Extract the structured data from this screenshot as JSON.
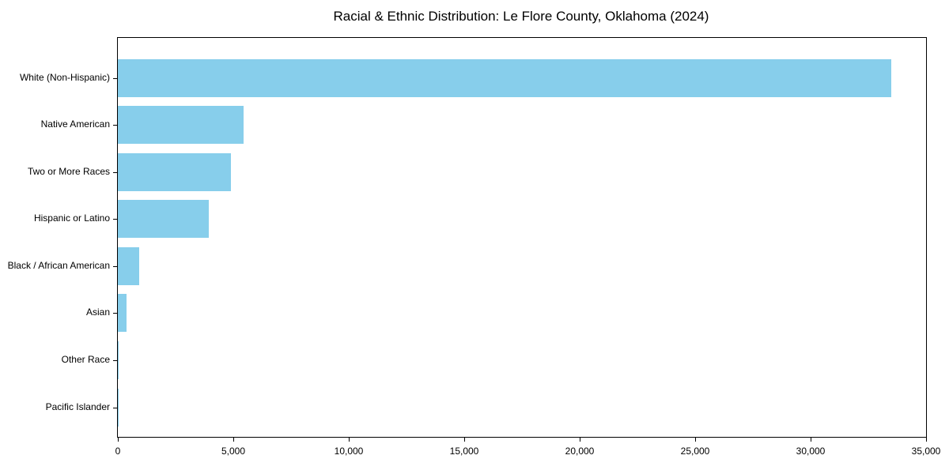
{
  "chart_data": {
    "type": "bar",
    "orientation": "horizontal",
    "title": "Racial & Ethnic Distribution: Le Flore County, Oklahoma (2024)",
    "xlabel": "",
    "ylabel": "",
    "categories": [
      "White (Non-Hispanic)",
      "Native American",
      "Two or More Races",
      "Hispanic or Latino",
      "Black / African American",
      "Asian",
      "Other Race",
      "Pacific Islander"
    ],
    "values": [
      33500,
      5450,
      4900,
      3930,
      920,
      390,
      50,
      20
    ],
    "xlim": [
      0,
      35000
    ],
    "xticks": [
      0,
      5000,
      10000,
      15000,
      20000,
      25000,
      30000,
      35000
    ],
    "xtick_labels": [
      "0",
      "5,000",
      "10,000",
      "15,000",
      "20,000",
      "25,000",
      "30,000",
      "35,000"
    ],
    "bar_color": "#87CEEB",
    "axis_color": "#000000",
    "grid": false,
    "legend": null
  }
}
